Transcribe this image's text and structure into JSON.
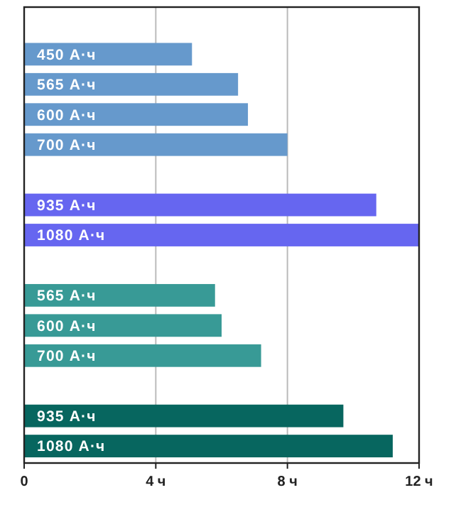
{
  "chart_data": {
    "type": "bar",
    "orientation": "horizontal",
    "categories": [
      null,
      "450 А·ч",
      "565 А·ч",
      "600 А·ч",
      "700 А·ч",
      null,
      "935 А·ч",
      "1080 А·ч",
      null,
      "565 А·ч",
      "600 А·ч",
      "700 А·ч",
      null,
      "935 А·ч",
      "1080 А·ч"
    ],
    "values": [
      null,
      5.1,
      6.5,
      6.8,
      8.0,
      null,
      10.7,
      12.0,
      null,
      5.8,
      6.0,
      7.2,
      null,
      9.7,
      11.2
    ],
    "colors": [
      null,
      "#6699cc",
      "#6699cc",
      "#6699cc",
      "#6699cc",
      null,
      "#6666f0",
      "#6666f0",
      null,
      "#389a96",
      "#389a96",
      "#389a96",
      null,
      "#07665f",
      "#07665f"
    ],
    "xlim": [
      0,
      12
    ],
    "xticks": [
      0,
      {
        "value": 4,
        "label": "4 ч"
      },
      {
        "value": 8,
        "label": "8 ч"
      },
      {
        "value": 12,
        "label": "12 ч"
      }
    ],
    "grid": "x"
  }
}
